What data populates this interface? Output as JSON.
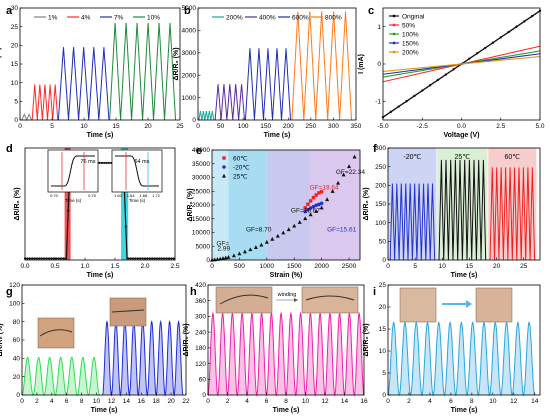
{
  "figure": {
    "title": ""
  },
  "chart_data": [
    {
      "panel": "a",
      "type": "line",
      "xlabel": "Time (s)",
      "ylabel": "ΔR/R₀ (%)",
      "xlim": [
        0,
        25
      ],
      "ylim": [
        0,
        30
      ],
      "xticks": [
        0,
        5,
        10,
        15,
        20,
        25
      ],
      "yticks": [
        0,
        5,
        10,
        15,
        20,
        25,
        30
      ],
      "legend": "top",
      "series": [
        {
          "name": "1%",
          "color": "#808080",
          "x_start": 0.3,
          "x_end": 1.8,
          "cycles": 2,
          "amplitude": 1.5
        },
        {
          "name": "4%",
          "color": "#ff2a2a",
          "x_start": 1.9,
          "x_end": 5.9,
          "cycles": 5,
          "amplitude": 9.5
        },
        {
          "name": "7%",
          "color": "#1f2fb8",
          "x_start": 6.0,
          "x_end": 13.9,
          "cycles": 5,
          "amplitude": 19.5
        },
        {
          "name": "10%",
          "color": "#1f8a3a",
          "x_start": 14.0,
          "x_end": 24.3,
          "cycles": 6,
          "amplitude": 26
        }
      ]
    },
    {
      "panel": "b",
      "type": "line",
      "xlabel": "Time (s)",
      "ylabel": "ΔR/R₀ (%)",
      "xlim": [
        0,
        350
      ],
      "ylim": [
        0,
        5000
      ],
      "xticks": [
        0,
        50,
        100,
        150,
        200,
        250,
        300,
        350
      ],
      "yticks": [
        0,
        1000,
        2000,
        3000,
        4000,
        5000
      ],
      "legend": "top",
      "series": [
        {
          "name": "200%",
          "color": "#1aa79a",
          "x_start": 2,
          "x_end": 35,
          "cycles": 5,
          "amplitude": 400
        },
        {
          "name": "400%",
          "color": "#5a2ca0",
          "x_start": 38,
          "x_end": 103,
          "cycles": 5,
          "amplitude": 1600
        },
        {
          "name": "600%",
          "color": "#1f2fb8",
          "x_start": 105,
          "x_end": 205,
          "cycles": 5,
          "amplitude": 3200
        },
        {
          "name": "800%",
          "color": "#ff7a1a",
          "x_start": 208,
          "x_end": 340,
          "cycles": 5,
          "amplitude": 4850
        }
      ]
    },
    {
      "panel": "c",
      "type": "line",
      "xlabel": "Voltage (V)",
      "ylabel": "I (mA)",
      "xlim": [
        -5,
        5
      ],
      "ylim": [
        -1.5,
        1.5
      ],
      "xticks": [
        -5.0,
        -2.5,
        0.0,
        2.5,
        5.0
      ],
      "yticks": [
        -1,
        0,
        1
      ],
      "legend": "top-left",
      "series": [
        {
          "name": "Original",
          "color": "#111111",
          "slope": 0.285,
          "markers": true
        },
        {
          "name": "50%",
          "color": "#ff2a2a",
          "slope": 0.095
        },
        {
          "name": "100%",
          "color": "#2ca02c",
          "slope": 0.07
        },
        {
          "name": "150%",
          "color": "#1f2fb8",
          "slope": 0.055
        },
        {
          "name": "200%",
          "color": "#e09b1a",
          "slope": 0.04
        }
      ]
    },
    {
      "panel": "d",
      "type": "line",
      "xlabel": "Time (s)",
      "ylabel": "ΔR/R₀ (%)",
      "xlim": [
        0,
        2.5
      ],
      "ylim": [
        0,
        150
      ],
      "xticks": [
        0.0,
        0.5,
        1.0,
        1.5,
        2.0,
        2.5
      ],
      "points": [
        [
          0,
          2
        ],
        [
          0.69,
          2
        ],
        [
          0.75,
          130
        ],
        [
          1.64,
          130
        ],
        [
          1.7,
          2
        ],
        [
          2.5,
          2
        ]
      ],
      "shaded_regions": [
        {
          "x": [
            0.66,
            0.76
          ],
          "color": "#ee3333"
        },
        {
          "x": [
            1.6,
            1.72
          ],
          "color": "#22ccdd"
        }
      ],
      "insets": [
        {
          "label": "76 ms",
          "x_axis_label": "Time (s)",
          "xticks": [
            "0.70",
            "0.75"
          ]
        },
        {
          "label": "64 ms",
          "x_axis_label": "Time (s)",
          "xticks": [
            "1.60",
            "1.64",
            "1.68",
            "1.72"
          ]
        }
      ]
    },
    {
      "panel": "e",
      "type": "scatter",
      "xlabel": "Strain (%)",
      "ylabel": "ΔR/R₀ (%)",
      "xlim": [
        0,
        2700
      ],
      "ylim": [
        0,
        40000
      ],
      "xticks": [
        0,
        500,
        1000,
        1500,
        2000,
        2500
      ],
      "yticks": [
        0,
        5000,
        10000,
        15000,
        20000,
        25000,
        30000,
        35000,
        40000
      ],
      "legend": "top-left",
      "series": [
        {
          "name": "60℃",
          "color": "#ee2222",
          "marker": "square",
          "x": [
            1700,
            1750,
            1800,
            1850,
            1900,
            1950,
            2000
          ],
          "y": [
            19000,
            20300,
            21500,
            22700,
            23600,
            24400,
            24800
          ]
        },
        {
          "name": "-20℃",
          "color": "#2233cc",
          "marker": "circle",
          "x": [
            1700,
            1750,
            1800,
            1850,
            1900,
            1950,
            2000
          ],
          "y": [
            17600,
            18300,
            18900,
            19400,
            19900,
            20200,
            20600
          ]
        },
        {
          "name": "25℃",
          "color": "#111111",
          "marker": "triangle",
          "x": [
            0,
            50,
            100,
            150,
            200,
            250,
            300,
            400,
            500,
            600,
            700,
            800,
            900,
            1000,
            1100,
            1200,
            1300,
            1400,
            1500,
            1600,
            1700,
            1800,
            1900,
            2000,
            2100,
            2200,
            2300,
            2400,
            2500,
            2600
          ],
          "y": [
            0,
            100,
            250,
            400,
            600,
            800,
            1000,
            1600,
            2300,
            3000,
            3800,
            4600,
            5500,
            6500,
            7600,
            8700,
            9900,
            11100,
            12400,
            13700,
            15100,
            16500,
            17700,
            19000,
            22000,
            25000,
            28000,
            31000,
            34000,
            37500
          ]
        }
      ],
      "regions": [
        {
          "x": [
            0,
            300
          ],
          "color": "#c8eaf8"
        },
        {
          "x": [
            300,
            1000
          ],
          "color": "#a8dcf3"
        },
        {
          "x": [
            1000,
            1800
          ],
          "color": "#c9c9ef"
        },
        {
          "x": [
            1800,
            2700
          ],
          "color": "#dbc8ef"
        }
      ],
      "annotations": [
        {
          "text": "GF=",
          "x": 80,
          "y": 5200,
          "color": "#111111"
        },
        {
          "text": "2.99",
          "x": 100,
          "y": 3400,
          "color": "#111111"
        },
        {
          "text": "GF=8.70",
          "x": 620,
          "y": 10300,
          "color": "#111111"
        },
        {
          "text": "GF=16.67",
          "x": 1440,
          "y": 17300,
          "color": "#111111"
        },
        {
          "text": "GF=18.64",
          "x": 1780,
          "y": 25600,
          "color": "#ee2222"
        },
        {
          "text": "GF=15.61",
          "x": 2100,
          "y": 10300,
          "color": "#2233cc"
        },
        {
          "text": "GF=22.34",
          "x": 2260,
          "y": 31300,
          "color": "#111111"
        }
      ]
    },
    {
      "panel": "f",
      "type": "line",
      "xlabel": "Time (s)",
      "ylabel": "ΔR/R₀ (%)",
      "xlim": [
        0,
        28
      ],
      "ylim": [
        0,
        300
      ],
      "xticks": [
        0,
        5,
        10,
        15,
        20,
        25
      ],
      "yticks": [
        0,
        50,
        100,
        150,
        200,
        250,
        300
      ],
      "legend": "top",
      "series": [
        {
          "name": "-20℃",
          "color": "#2233cc",
          "x_start": 0.4,
          "x_end": 8.6,
          "cycles": 10,
          "amplitude": 205,
          "bg": "#c6cdf2"
        },
        {
          "name": "25℃",
          "color": "#111111",
          "x_start": 9.4,
          "x_end": 18.0,
          "cycles": 10,
          "amplitude": 268,
          "bg": "#d5eccf"
        },
        {
          "name": "60℃",
          "color": "#ee2222",
          "x_start": 18.8,
          "x_end": 27.0,
          "cycles": 10,
          "amplitude": 248,
          "bg": "#f6c6c6"
        }
      ]
    },
    {
      "panel": "g",
      "type": "line",
      "xlabel": "Time (s)",
      "ylabel": "ΔR/R₀ (%)",
      "xlim": [
        0,
        22
      ],
      "ylim": [
        0,
        120
      ],
      "xticks": [
        0,
        2,
        4,
        6,
        8,
        10,
        12,
        14,
        16,
        18,
        20,
        22
      ],
      "yticks": [
        0,
        20,
        40,
        60,
        80,
        100,
        120
      ],
      "series": [
        {
          "name": "",
          "color": "#33dd55",
          "x_start": 0,
          "x_end": 10.4,
          "cycles": 7,
          "amplitude": 41,
          "fill": true
        },
        {
          "name": "",
          "color": "#1f2fd8",
          "x_start": 10.8,
          "x_end": 21.6,
          "cycles": 9,
          "amplitude": 80,
          "fill": true
        }
      ]
    },
    {
      "panel": "h",
      "type": "line",
      "xlabel": "Time (s)",
      "ylabel": "ΔR/R₀ (%)",
      "xlim": [
        0,
        16
      ],
      "ylim": [
        0,
        420
      ],
      "xticks": [
        0,
        2,
        4,
        6,
        8,
        10,
        12,
        14,
        16
      ],
      "yticks": [
        0,
        60,
        120,
        180,
        240,
        300,
        360,
        420
      ],
      "annotations": [
        {
          "text": "winding"
        }
      ],
      "series": [
        {
          "name": "",
          "color": "#ee22aa",
          "x_start": 0,
          "x_end": 16,
          "cycles": 16,
          "amplitude": 312,
          "fill": true
        }
      ]
    },
    {
      "panel": "i",
      "type": "line",
      "xlabel": "Time (s)",
      "ylabel": "ΔR/R₀ (%)",
      "xlim": [
        0,
        14.5
      ],
      "ylim": [
        0,
        25
      ],
      "xticks": [
        0,
        2,
        4,
        6,
        8,
        10,
        12,
        14
      ],
      "yticks": [
        0,
        5,
        10,
        15,
        20,
        25
      ],
      "series": [
        {
          "name": "",
          "color": "#2aa7e0",
          "x_start": 0,
          "x_end": 14,
          "cycles": 13,
          "amplitude": 16.5,
          "fill": true
        }
      ]
    }
  ]
}
